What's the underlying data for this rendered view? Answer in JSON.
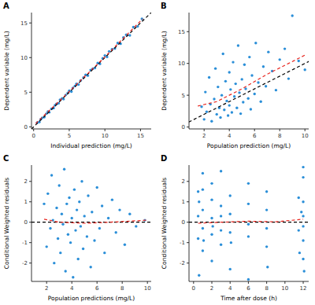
{
  "chart_data": [
    {
      "type": "scatter",
      "title": "A",
      "x_label": "Individual prediction (mg/L)",
      "y_label": "Dependent variable (mg/L)",
      "xlim": [
        -0.3,
        16.5
      ],
      "ylim": [
        -0.3,
        16.5
      ],
      "xticks": [
        0,
        5,
        10,
        15
      ],
      "yticks": [
        0,
        5,
        10,
        15
      ],
      "series": [
        {
          "type": "scatter",
          "color": "#2b8fd8",
          "marker": "circle",
          "x": [
            0.5,
            0.8,
            1.0,
            1.2,
            1.5,
            1.8,
            2.0,
            2.2,
            2.5,
            2.8,
            3.0,
            3.2,
            3.5,
            3.7,
            4.0,
            4.2,
            4.5,
            4.8,
            5.0,
            5.3,
            5.5,
            5.8,
            6.0,
            6.3,
            6.6,
            7.0,
            7.3,
            7.6,
            8.0,
            8.3,
            8.6,
            9.0,
            9.3,
            9.7,
            10.0,
            10.3,
            10.6,
            11.0,
            11.4,
            11.8,
            12.2,
            12.6,
            13.0,
            13.5,
            14.0,
            14.6,
            15.2
          ],
          "values": [
            0.6,
            0.7,
            1.1,
            1.3,
            1.4,
            1.9,
            2.2,
            2.1,
            2.6,
            2.7,
            3.1,
            3.3,
            3.4,
            3.9,
            4.1,
            4.0,
            4.6,
            4.9,
            5.2,
            5.1,
            5.6,
            5.9,
            6.2,
            6.1,
            6.7,
            7.1,
            7.5,
            7.4,
            8.2,
            8.4,
            8.5,
            9.2,
            9.1,
            9.9,
            10.3,
            10.1,
            10.9,
            11.2,
            11.3,
            12.1,
            12.0,
            12.9,
            13.3,
            13.2,
            14.4,
            14.5,
            15.6
          ]
        },
        {
          "type": "line",
          "color": "#000000",
          "line_style": "dashed",
          "x": [
            -0.3,
            16.5
          ],
          "values": [
            -0.3,
            16.5
          ]
        },
        {
          "type": "line",
          "color": "#e8261f",
          "line_style": "dashed",
          "x": [
            0.3,
            5,
            10,
            15.3
          ],
          "values": [
            0.5,
            5.1,
            10.1,
            15.6
          ]
        }
      ]
    },
    {
      "type": "scatter",
      "title": "B",
      "x_label": "Population prediction (mg/L)",
      "y_label": "Dependent variable (mg/L)",
      "xlim": [
        0.8,
        10.3
      ],
      "ylim": [
        -0.3,
        18
      ],
      "xticks": [
        2,
        4,
        6,
        8,
        10
      ],
      "yticks": [
        0,
        5,
        10,
        15
      ],
      "series": [
        {
          "type": "scatter",
          "color": "#2b8fd8",
          "marker": "circle",
          "x": [
            1.8,
            2.0,
            2.1,
            2.2,
            2.4,
            2.5,
            2.6,
            2.8,
            2.9,
            3.0,
            3.1,
            3.2,
            3.3,
            3.4,
            3.5,
            3.6,
            3.7,
            3.8,
            3.9,
            4.0,
            4.0,
            4.1,
            4.2,
            4.3,
            4.4,
            4.5,
            4.6,
            4.7,
            4.8,
            4.9,
            5.0,
            5.1,
            5.2,
            5.3,
            5.5,
            5.6,
            5.7,
            5.8,
            6.0,
            6.1,
            6.3,
            6.5,
            6.7,
            6.9,
            7.1,
            7.4,
            7.7,
            8.0,
            8.4,
            8.7,
            9.0,
            9.5,
            10.0
          ],
          "values": [
            3.2,
            1.2,
            5.5,
            2.4,
            7.8,
            3.6,
            0.9,
            4.4,
            9.2,
            2.0,
            6.3,
            3.0,
            1.5,
            5.0,
            11.5,
            2.7,
            7.2,
            4.1,
            1.8,
            8.6,
            3.4,
            5.9,
            2.3,
            10.2,
            4.8,
            6.8,
            3.0,
            12.8,
            5.4,
            2.1,
            7.5,
            3.9,
            9.8,
            6.0,
            4.5,
            11.0,
            2.8,
            8.1,
            5.2,
            13.2,
            7.0,
            4.0,
            9.5,
            6.4,
            11.8,
            8.8,
            5.8,
            10.6,
            12.3,
            7.6,
            17.5,
            10.4,
            9.0
          ]
        },
        {
          "type": "line",
          "color": "#000000",
          "line_style": "dashed",
          "x": [
            0,
            18
          ],
          "values": [
            0,
            18
          ]
        },
        {
          "type": "line",
          "color": "#e8261f",
          "line_style": "dashed",
          "x": [
            1.5,
            3,
            5,
            7,
            10
          ],
          "values": [
            3.3,
            4.0,
            6.0,
            8.3,
            11.3
          ]
        }
      ]
    },
    {
      "type": "scatter",
      "title": "C",
      "x_label": "Population predictions (mg/L)",
      "y_label": "Conditional Weighted residuals",
      "xlim": [
        0.8,
        10.3
      ],
      "ylim": [
        -2.9,
        2.8
      ],
      "xticks": [
        2,
        4,
        6,
        8,
        10
      ],
      "yticks": [
        -2,
        -1,
        0,
        1,
        2
      ],
      "series": [
        {
          "type": "scatter",
          "color": "#2b8fd8",
          "marker": "circle",
          "x": [
            1.8,
            2.0,
            2.1,
            2.3,
            2.4,
            2.5,
            2.6,
            2.8,
            2.9,
            3.0,
            3.1,
            3.2,
            3.3,
            3.4,
            3.5,
            3.6,
            3.7,
            3.8,
            3.9,
            4.0,
            4.1,
            4.2,
            4.3,
            4.4,
            4.5,
            4.6,
            4.7,
            4.8,
            4.9,
            5.0,
            5.2,
            5.3,
            5.5,
            5.6,
            5.8,
            6.0,
            6.2,
            6.4,
            6.6,
            6.9,
            7.2,
            7.5,
            7.8,
            8.2,
            8.6,
            9.1,
            9.8
          ],
          "values": [
            0.9,
            -1.2,
            1.4,
            -0.3,
            2.3,
            0.1,
            -2.0,
            0.7,
            -0.8,
            1.8,
            -1.5,
            0.4,
            -0.1,
            2.6,
            -2.4,
            0.9,
            -0.6,
            1.2,
            -1.0,
            0.2,
            -2.7,
            1.6,
            -0.4,
            0.6,
            -1.8,
            1.0,
            -0.2,
            2.0,
            -1.3,
            0.3,
            -0.7,
            1.3,
            -2.2,
            0.5,
            -0.9,
            1.7,
            -0.3,
            0.8,
            -1.5,
            0.2,
            1.1,
            -0.5,
            0.6,
            -1.1,
            0.4,
            -0.2,
            0.1
          ]
        },
        {
          "type": "line",
          "color": "#000000",
          "line_style": "dashed",
          "x": [
            0.8,
            10.3
          ],
          "values": [
            0,
            0
          ]
        },
        {
          "type": "line",
          "color": "#e8261f",
          "line_style": "dashed",
          "x": [
            1.8,
            3,
            5,
            7,
            10
          ],
          "values": [
            0.15,
            0.0,
            -0.05,
            0.0,
            0.1
          ]
        }
      ]
    },
    {
      "type": "scatter",
      "title": "D",
      "x_label": "Time after dose (h)",
      "y_label": "Conditional Weighted residuals",
      "xlim": [
        -0.5,
        12.6
      ],
      "ylim": [
        -2.9,
        2.8
      ],
      "xticks": [
        0,
        2,
        4,
        6,
        8,
        10,
        12
      ],
      "yticks": [
        -2,
        -1,
        0,
        1,
        2
      ],
      "series": [
        {
          "type": "scatter",
          "color": "#2b8fd8",
          "marker": "circle",
          "x": [
            0.5,
            0.5,
            0.5,
            0.6,
            0.6,
            1.0,
            1.0,
            1.0,
            1.0,
            1.0,
            1.1,
            2.0,
            2.0,
            2.0,
            2.0,
            2.0,
            2.1,
            3.0,
            3.0,
            3.0,
            3.0,
            3.0,
            4.0,
            4.0,
            4.0,
            4.0,
            4.1,
            6.0,
            6.0,
            6.0,
            6.0,
            6.0,
            8.0,
            8.0,
            8.0,
            8.0,
            8.1,
            11.5,
            11.5,
            11.6,
            11.8,
            12.0,
            12.0,
            12.0,
            12.0,
            12.0,
            12.0,
            12.0,
            12.1
          ],
          "values": [
            1.5,
            -0.8,
            0.3,
            -2.6,
            1.0,
            2.4,
            0.6,
            -0.3,
            -1.4,
            1.6,
            -0.9,
            1.9,
            0.2,
            -0.6,
            -1.9,
            1.1,
            -0.2,
            0.8,
            -1.1,
            2.5,
            -0.4,
            0.3,
            1.3,
            -0.5,
            -2.3,
            0.4,
            -1.0,
            0.9,
            -0.7,
            1.9,
            -0.1,
            -2.8,
            1.5,
            -0.3,
            -1.2,
            0.6,
            -2.2,
            1.2,
            -0.4,
            -1.5,
            0.5,
            2.7,
            2.2,
            1.0,
            -0.2,
            -0.9,
            -1.8,
            0.3,
            -2.4
          ]
        },
        {
          "type": "line",
          "color": "#000000",
          "line_style": "dashed",
          "x": [
            -0.5,
            12.6
          ],
          "values": [
            0,
            0
          ]
        },
        {
          "type": "line",
          "color": "#e8261f",
          "line_style": "dashed",
          "x": [
            0.5,
            3,
            6,
            9,
            12
          ],
          "values": [
            -0.05,
            0.0,
            0.05,
            0.02,
            0.15
          ]
        }
      ]
    }
  ]
}
